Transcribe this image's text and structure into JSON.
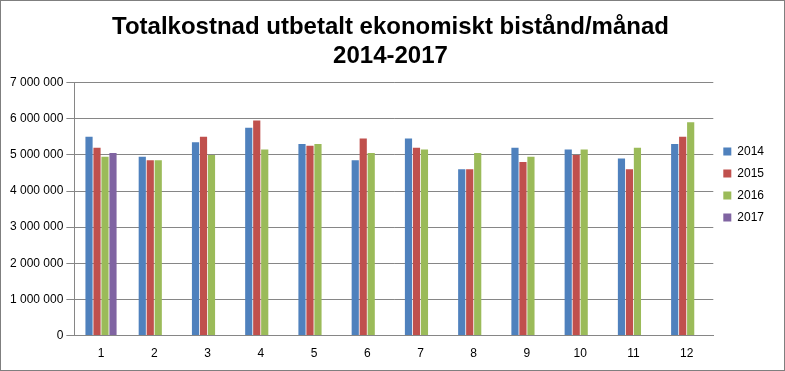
{
  "chart_data": {
    "type": "bar",
    "title": "Totalkostnad utbetalt ekonomiskt bistånd/månad 2014-2017",
    "categories": [
      "1",
      "2",
      "3",
      "4",
      "5",
      "6",
      "7",
      "8",
      "9",
      "10",
      "11",
      "12"
    ],
    "series": [
      {
        "name": "2014",
        "color": "#4f81bd",
        "values": [
          5500000,
          4950000,
          5350000,
          5750000,
          5300000,
          4850000,
          5450000,
          4600000,
          5200000,
          5150000,
          4900000,
          5300000
        ]
      },
      {
        "name": "2015",
        "color": "#c0504d",
        "values": [
          5200000,
          4850000,
          5500000,
          5950000,
          5250000,
          5450000,
          5200000,
          4600000,
          4800000,
          5000000,
          4600000,
          5500000
        ]
      },
      {
        "name": "2016",
        "color": "#9bbb59",
        "values": [
          4950000,
          4850000,
          5000000,
          5150000,
          5300000,
          5050000,
          5150000,
          5050000,
          4950000,
          5150000,
          5200000,
          5900000
        ]
      },
      {
        "name": "2017",
        "color": "#8064a2",
        "values": [
          5050000,
          null,
          null,
          null,
          null,
          null,
          null,
          null,
          null,
          null,
          null,
          null
        ]
      }
    ],
    "ylim": [
      0,
      7000000
    ],
    "yticks": [
      0,
      {
        "value": 1000000,
        "label": "1 000 000"
      },
      {
        "value": 2000000,
        "label": "2 000 000"
      },
      {
        "value": 3000000,
        "label": "3 000 000"
      },
      {
        "value": 4000000,
        "label": "4 000 000"
      },
      {
        "value": 5000000,
        "label": "5 000 000"
      },
      {
        "value": 6000000,
        "label": "6 000 000"
      },
      {
        "value": 7000000,
        "label": "7 000 000"
      }
    ],
    "grid": true,
    "legend": "right"
  }
}
